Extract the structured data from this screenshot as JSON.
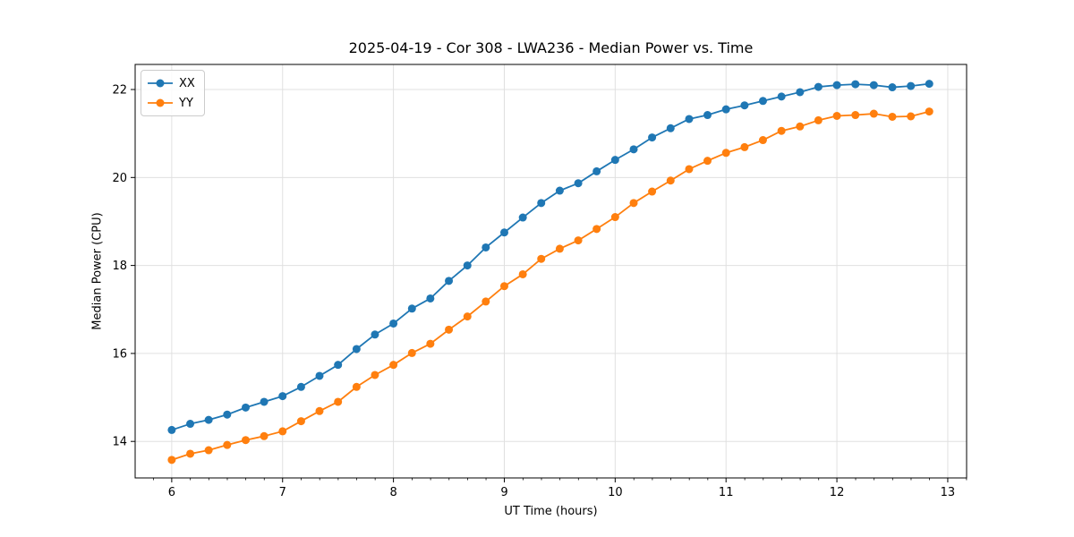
{
  "figure": {
    "background": "#ffffff",
    "spine_color": "#000000",
    "grid_color": "#e0e0e0",
    "tick_label_color": "#000000"
  },
  "chart_data": {
    "type": "line",
    "title": "2025-04-19 - Cor 308 - LWA236 - Median Power vs. Time",
    "xlabel": "UT Time (hours)",
    "ylabel": "Median Power (CPU)",
    "xlim": [
      5.67,
      13.17
    ],
    "ylim": [
      13.17,
      22.57
    ],
    "x_ticks": [
      6,
      7,
      8,
      9,
      10,
      11,
      12,
      13
    ],
    "y_ticks": [
      14,
      16,
      18,
      20,
      22
    ],
    "x_minor_step": 0.1667,
    "grid": true,
    "legend_position": "upper-left",
    "marker": "circle",
    "x": [
      6,
      6.167,
      6.333,
      6.5,
      6.667,
      6.833,
      7,
      7.167,
      7.333,
      7.5,
      7.667,
      7.833,
      8,
      8.167,
      8.333,
      8.5,
      8.667,
      8.833,
      9,
      9.167,
      9.333,
      9.5,
      9.667,
      9.833,
      10,
      10.167,
      10.333,
      10.5,
      10.667,
      10.833,
      11,
      11.167,
      11.333,
      11.5,
      11.667,
      11.833,
      12,
      12.167,
      12.333,
      12.5,
      12.667,
      12.833
    ],
    "series": [
      {
        "name": "XX",
        "color": "#1f77b4",
        "values": [
          14.26,
          14.4,
          14.49,
          14.61,
          14.77,
          14.9,
          15.03,
          15.24,
          15.49,
          15.74,
          16.1,
          16.43,
          16.68,
          17.02,
          17.25,
          17.65,
          18.0,
          18.41,
          18.75,
          19.09,
          19.42,
          19.7,
          19.87,
          20.14,
          20.4,
          20.64,
          20.91,
          21.12,
          21.33,
          21.42,
          21.55,
          21.64,
          21.74,
          21.84,
          21.94,
          22.06,
          22.1,
          22.12,
          22.1,
          22.05,
          22.08,
          22.13
        ]
      },
      {
        "name": "YY",
        "color": "#ff7f0e",
        "values": [
          13.58,
          13.72,
          13.8,
          13.92,
          14.03,
          14.12,
          14.23,
          14.46,
          14.69,
          14.9,
          15.24,
          15.51,
          15.74,
          16.01,
          16.22,
          16.54,
          16.84,
          17.18,
          17.53,
          17.8,
          18.15,
          18.38,
          18.57,
          18.83,
          19.1,
          19.42,
          19.68,
          19.93,
          20.19,
          20.38,
          20.56,
          20.69,
          20.85,
          21.06,
          21.16,
          21.3,
          21.4,
          21.42,
          21.45,
          21.38,
          21.39,
          21.5
        ]
      }
    ]
  }
}
